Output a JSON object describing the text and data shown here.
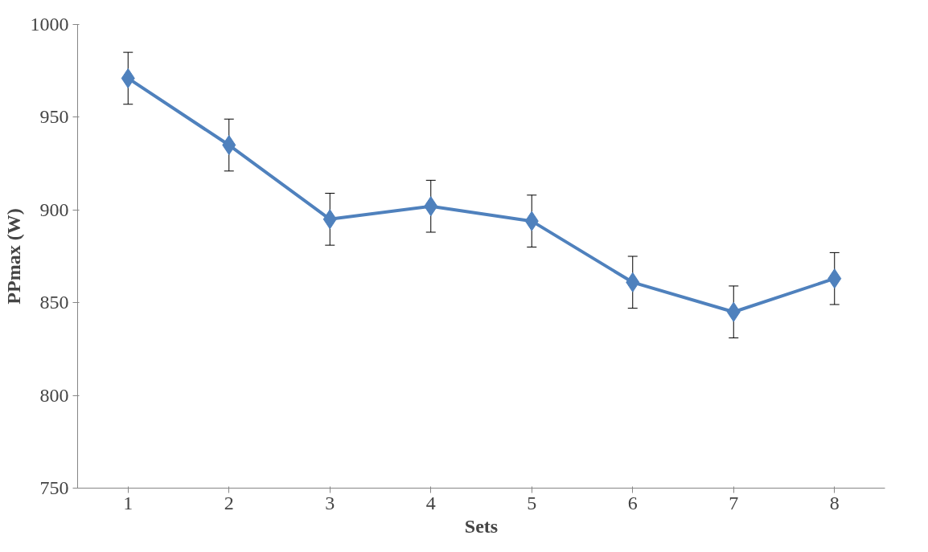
{
  "chart_data": {
    "type": "line",
    "xlabel": "Sets",
    "ylabel": "PPmax (W)",
    "categories": [
      "1",
      "2",
      "3",
      "4",
      "5",
      "6",
      "7",
      "8"
    ],
    "series": [
      {
        "color": "#4f81bd",
        "values": [
          971,
          935,
          895,
          902,
          894,
          861,
          845,
          863
        ],
        "errors": [
          14,
          14,
          14,
          14,
          14,
          14,
          14,
          14
        ]
      }
    ],
    "ylim": [
      750,
      1000
    ],
    "yticks": [
      750,
      800,
      850,
      900,
      950,
      1000
    ],
    "grid": false,
    "marker": "diamond",
    "line_style": "solid"
  }
}
